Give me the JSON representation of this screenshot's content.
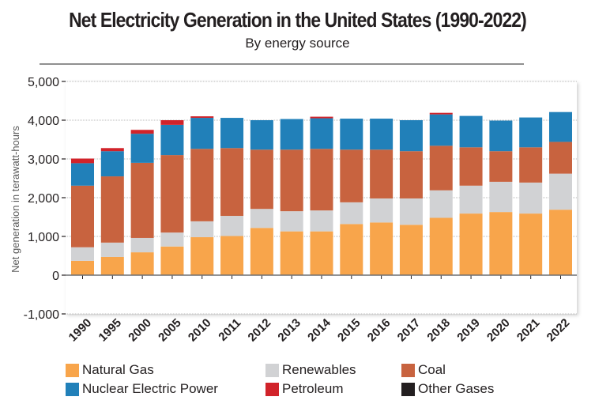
{
  "chart_data": {
    "type": "bar",
    "stacked": true,
    "title": "Net Electricity Generation in the United States (1990-2022)",
    "subtitle": "By energy source",
    "xlabel": "",
    "ylabel": "Net generation in terawatt-hours",
    "ylim": [
      -1000,
      5000
    ],
    "yticks": [
      -1000,
      0,
      1000,
      2000,
      3000,
      4000,
      5000
    ],
    "ytick_labels": [
      "-1,000",
      "0",
      "1,000",
      "2,000",
      "3,000",
      "4,000",
      "5,000"
    ],
    "grid": true,
    "legend_position": "bottom",
    "categories": [
      "1990",
      "1995",
      "2000",
      "2005",
      "2010",
      "2011",
      "2012",
      "2013",
      "2014",
      "2015",
      "2016",
      "2017",
      "2018",
      "2019",
      "2020",
      "2021",
      "2022"
    ],
    "series": [
      {
        "name": "Natural Gas",
        "color": "#f8a54b",
        "values": [
          370,
          470,
          590,
          740,
          980,
          1010,
          1220,
          1130,
          1130,
          1320,
          1360,
          1300,
          1480,
          1590,
          1630,
          1590,
          1690
        ]
      },
      {
        "name": "Renewables",
        "color": "#d1d2d4",
        "values": [
          350,
          370,
          370,
          360,
          410,
          520,
          490,
          520,
          540,
          560,
          620,
          680,
          710,
          720,
          780,
          800,
          930
        ]
      },
      {
        "name": "Coal",
        "color": "#c8633f",
        "values": [
          1590,
          1710,
          1940,
          2000,
          1870,
          1750,
          1530,
          1590,
          1590,
          1360,
          1260,
          1220,
          1150,
          990,
          790,
          910,
          820
        ]
      },
      {
        "name": "Nuclear Electric Power",
        "color": "#2180b9",
        "values": [
          580,
          650,
          750,
          780,
          800,
          780,
          760,
          790,
          790,
          800,
          800,
          800,
          810,
          810,
          790,
          770,
          770
        ]
      },
      {
        "name": "Petroleum",
        "color": "#d1232a",
        "values": [
          120,
          80,
          100,
          120,
          40,
          0,
          0,
          0,
          40,
          0,
          0,
          0,
          40,
          0,
          0,
          0,
          0
        ]
      },
      {
        "name": "Other Gases",
        "color": "#231f20",
        "values": [
          0,
          0,
          0,
          0,
          0,
          0,
          0,
          0,
          0,
          0,
          0,
          0,
          0,
          0,
          0,
          0,
          0
        ]
      }
    ]
  },
  "legend": [
    {
      "label": "Natural Gas",
      "color": "#f8a54b"
    },
    {
      "label": "Renewables",
      "color": "#d1d2d4"
    },
    {
      "label": "Coal",
      "color": "#c8633f"
    },
    {
      "label": "Nuclear Electric Power",
      "color": "#2180b9"
    },
    {
      "label": "Petroleum",
      "color": "#d1232a"
    },
    {
      "label": "Other Gases",
      "color": "#231f20"
    }
  ]
}
